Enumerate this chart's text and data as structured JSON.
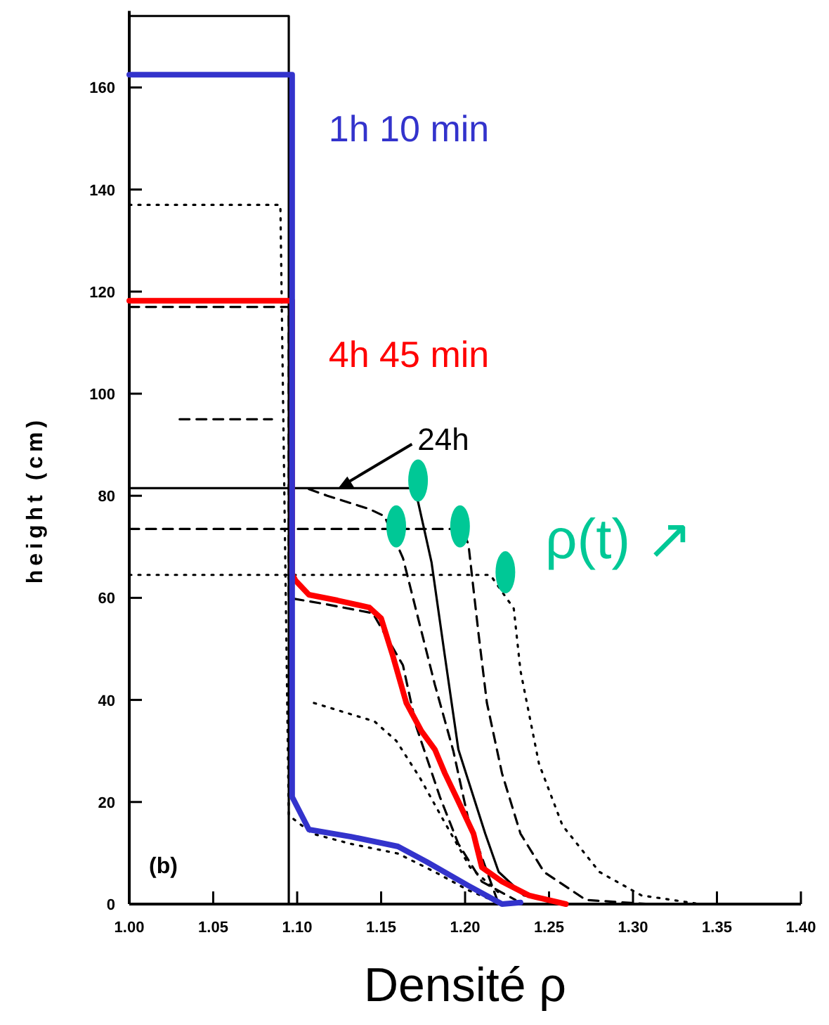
{
  "chart_data": {
    "type": "line",
    "xlabel": "Densité ρ",
    "ylabel": "height  (cm)",
    "xlim": [
      1.0,
      1.4
    ],
    "ylim": [
      0,
      175
    ],
    "xticks": [
      {
        "value": 1.0,
        "label": "1.00"
      },
      {
        "value": 1.05,
        "label": "1.05"
      },
      {
        "value": 1.1,
        "label": "1.10"
      },
      {
        "value": 1.15,
        "label": "1.15"
      },
      {
        "value": 1.2,
        "label": "1.20"
      },
      {
        "value": 1.25,
        "label": "1.25"
      },
      {
        "value": 1.3,
        "label": "1.30"
      },
      {
        "value": 1.35,
        "label": "1.35"
      },
      {
        "value": 1.4,
        "label": "1.40"
      }
    ],
    "yticks": [
      0,
      20,
      40,
      60,
      80,
      100,
      120,
      140,
      160
    ],
    "grid": false,
    "series": [
      {
        "color": "#000000",
        "line_style": "solid",
        "x": [
          1.0,
          1.095,
          1.095
        ],
        "values": [
          174,
          174,
          0
        ]
      },
      {
        "color": "#000000",
        "line_style": "dotted",
        "x": [
          1.0,
          1.09,
          1.095,
          1.109,
          1.132,
          1.16,
          1.182,
          1.202,
          1.222
        ],
        "values": [
          137,
          137,
          17.4,
          13.8,
          11.8,
          9.9,
          6.3,
          2.7,
          0
        ]
      },
      {
        "color": "#000000",
        "line_style": "dashed",
        "x": [
          1.0,
          1.095,
          1.095,
          1.118,
          1.145,
          1.163,
          1.171,
          1.185,
          1.196,
          1.21,
          1.23
        ],
        "values": [
          117,
          117,
          60,
          58.7,
          57,
          46.8,
          34.7,
          21,
          11.8,
          4.4,
          0.8
        ]
      },
      {
        "color": "#000000",
        "line_style": "dashed",
        "x": [
          1.03,
          1.085,
          null,
          1.107,
          1.118,
          1.143,
          1.152,
          1.163,
          1.182,
          1.193,
          1.202,
          1.22
        ],
        "values": [
          95,
          95,
          null,
          81.3,
          80,
          77.4,
          76,
          67.8,
          43,
          30,
          16.5,
          0
        ]
      },
      {
        "color": "#000000",
        "line_style": "dotted",
        "x": [
          1.11,
          1.146,
          1.159,
          1.173,
          1.187,
          1.203,
          1.222
        ],
        "values": [
          39.4,
          35.8,
          32,
          24.8,
          16.5,
          7.2,
          1.7
        ]
      },
      {
        "color": "#000000",
        "line_style": "dashed",
        "x": [
          1.0,
          1.198,
          1.202,
          1.208,
          1.213,
          1.222,
          1.233,
          1.247,
          1.272,
          1.31
        ],
        "values": [
          73.5,
          73.5,
          70.5,
          53,
          39.4,
          25.6,
          13.8,
          6.3,
          0.8,
          0
        ]
      },
      {
        "color": "#000000",
        "line_style": "dotted",
        "x": [
          1.0,
          1.215,
          1.229,
          1.233,
          1.244,
          1.258,
          1.28,
          1.305,
          1.34
        ],
        "values": [
          64.5,
          64.5,
          57.9,
          45.7,
          27.5,
          15.4,
          6.3,
          1.7,
          0
        ]
      },
      {
        "color": "#000000",
        "line_style": "solid",
        "x": [
          1.0,
          1.168,
          1.172,
          1.18,
          1.188,
          1.196,
          1.212,
          1.22,
          1.235,
          1.263,
          1.3
        ],
        "values": [
          81.5,
          81.5,
          78.8,
          67,
          48.5,
          30.3,
          13.8,
          6.3,
          1.7,
          0,
          0
        ]
      },
      {
        "name": "4h 45 min",
        "color": "#ff0000",
        "line_style": "solid",
        "x": [
          1.0,
          1.097,
          1.097,
          1.099,
          1.107,
          1.124,
          1.143,
          1.15,
          1.157,
          1.165,
          1.174,
          1.182,
          1.188,
          1.196,
          1.205,
          1.21,
          1.222,
          1.238,
          1.26
        ],
        "values": [
          118.2,
          118.2,
          64.7,
          63.4,
          60.6,
          59.5,
          58.1,
          56,
          48.6,
          39.4,
          33.9,
          30.3,
          25.6,
          20.1,
          13.8,
          7.2,
          4.4,
          1.7,
          0
        ]
      },
      {
        "name": "1h 10 min",
        "color": "#3333cc",
        "line_style": "solid",
        "x": [
          1.0,
          1.097,
          1.097,
          1.107,
          1.132,
          1.16,
          1.177,
          1.202,
          1.222,
          1.233
        ],
        "values": [
          162.5,
          162.5,
          21,
          14.6,
          13.2,
          11.3,
          8.3,
          3.6,
          0,
          0.3
        ]
      },
      {
        "type": "scatter",
        "marker": "circle",
        "color": "#00c896",
        "x": [
          1.172,
          1.159,
          1.197,
          1.224
        ],
        "values": [
          83,
          74,
          74,
          65
        ]
      }
    ],
    "annotations": [
      {
        "text": "24h",
        "x": 1.124,
        "y": 81.3
      },
      "ρ(t) ↗",
      "(b)"
    ]
  }
}
